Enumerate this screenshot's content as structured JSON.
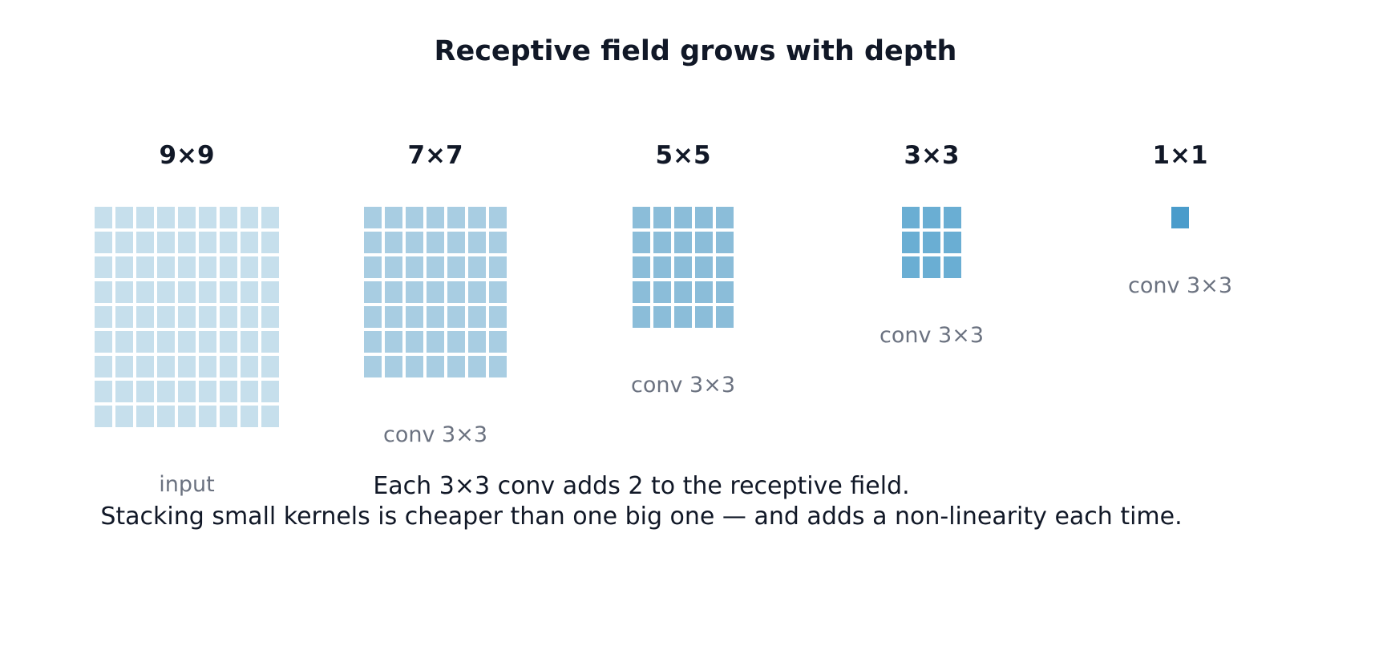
{
  "title": "Receptive field grows with depth",
  "stages": [
    {
      "size_label": "9×9",
      "op_label": "input",
      "grid": 9,
      "color": "#c6dfec"
    },
    {
      "size_label": "7×7",
      "op_label": "conv 3×3",
      "grid": 7,
      "color": "#a8cde2"
    },
    {
      "size_label": "5×5",
      "op_label": "conv 3×3",
      "grid": 5,
      "color": "#8bbdd9"
    },
    {
      "size_label": "3×3",
      "op_label": "conv 3×3",
      "grid": 3,
      "color": "#6aaed3"
    },
    {
      "size_label": "1×1",
      "op_label": "conv 3×3",
      "grid": 1,
      "color": "#4a9ccb"
    }
  ],
  "caption": {
    "line1": "Each 3×3 conv adds 2 to the receptive field.",
    "line2": "Stacking small kernels is cheaper than one big one — and adds a non-linearity each time."
  }
}
